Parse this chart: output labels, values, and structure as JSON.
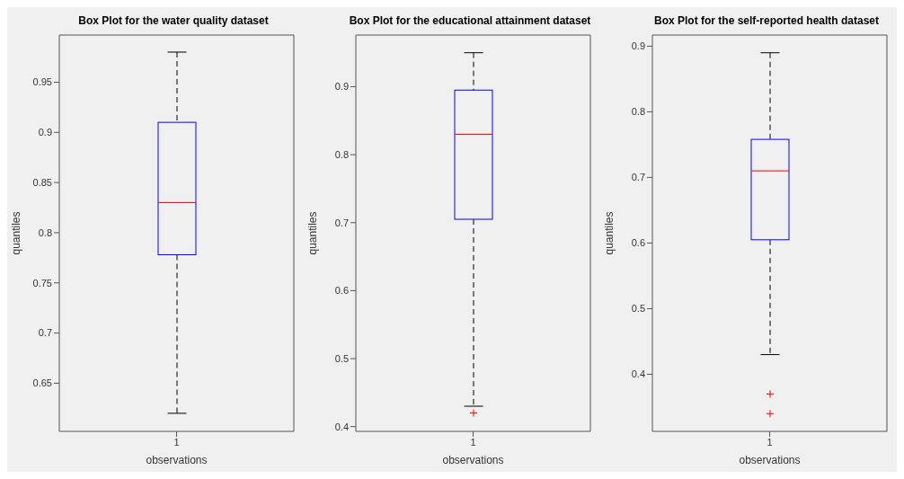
{
  "chart_data": [
    {
      "type": "box",
      "title": "Box Plot for the water quality dataset",
      "xlabel": "observations",
      "ylabel": "quantiles",
      "categories": [
        "1"
      ],
      "ylim": [
        0.602,
        0.997
      ],
      "yticks": [
        0.65,
        0.7,
        0.75,
        0.8,
        0.85,
        0.9,
        0.95
      ],
      "boxes": [
        {
          "low": 0.62,
          "q1": 0.778,
          "median": 0.83,
          "q3": 0.91,
          "high": 0.98
        }
      ]
    },
    {
      "type": "box",
      "title": "Box Plot for the educational attainment dataset",
      "xlabel": "observations",
      "ylabel": "quantiles",
      "categories": [
        "1"
      ],
      "ylim": [
        0.393,
        0.976
      ],
      "yticks": [
        0.4,
        0.5,
        0.6,
        0.7,
        0.8,
        0.9
      ],
      "boxes": [
        {
          "low": 0.43,
          "q1": 0.705,
          "median": 0.83,
          "q3": 0.895,
          "high": 0.95,
          "outliers": [
            0.42
          ]
        }
      ]
    },
    {
      "type": "box",
      "title": "Box Plot for the self-reported health dataset",
      "xlabel": "observations",
      "ylabel": "quantiles",
      "categories": [
        "1"
      ],
      "ylim": [
        0.313,
        0.917
      ],
      "yticks": [
        0.4,
        0.5,
        0.6,
        0.7,
        0.8,
        0.9
      ],
      "boxes": [
        {
          "low": 0.43,
          "q1": 0.605,
          "median": 0.71,
          "q3": 0.758,
          "high": 0.89,
          "outliers": [
            0.37,
            0.34
          ]
        }
      ]
    }
  ]
}
